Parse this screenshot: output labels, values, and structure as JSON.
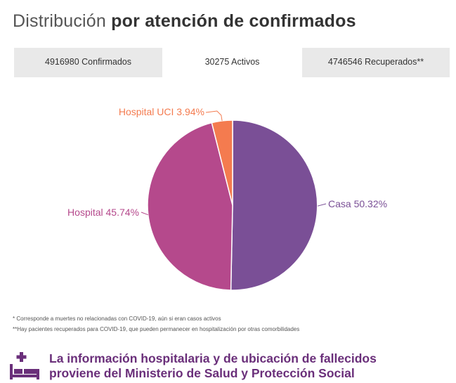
{
  "title": {
    "light": "Distribución",
    "bold": "por atención de confirmados"
  },
  "tabs": [
    {
      "label": "4916980 Confirmados",
      "active": false
    },
    {
      "label": "30275 Activos",
      "active": true
    },
    {
      "label": "4746546 Recuperados**",
      "active": false
    }
  ],
  "chart_data": {
    "type": "pie",
    "title": "",
    "slices": [
      {
        "label": "Casa 50.32%",
        "value": 50.32,
        "color": "#7a4f96"
      },
      {
        "label": "Hospital 45.74%",
        "value": 45.74,
        "color": "#b5498c"
      },
      {
        "label": "Hospital UCI 3.94%",
        "value": 3.94,
        "color": "#f47b4f"
      }
    ],
    "start": "12 o'clock",
    "direction": "clockwise"
  },
  "footnotes": [
    "* Corresponde a muertes no relacionadas con COVID-19, aún si eran casos activos",
    "**Hay pacientes recuperados para COVID-19, que pueden permanecer en hospitalización por otras comorbilidades"
  ],
  "info": {
    "line1": "La información hospitalaria y de ubicación de fallecidos",
    "line2": "proviene del Ministerio de Salud y Protección Social",
    "icon": "hospital-bed-icon",
    "color": "#6a2f7a"
  }
}
